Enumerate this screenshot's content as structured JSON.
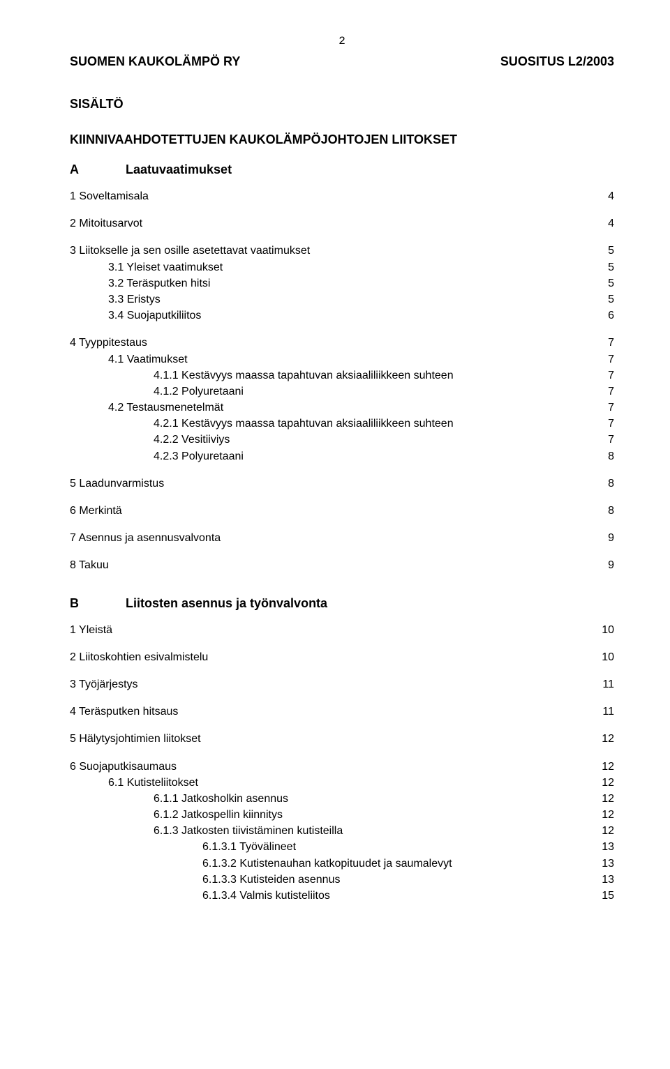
{
  "page_number": "2",
  "header": {
    "left": "SUOMEN KAUKOLÄMPÖ RY",
    "right": "SUOSITUS  L2/2003"
  },
  "sisalto_label": "SISÄLTÖ",
  "doc_title": "KIINNIVAAHDOTETTUJEN KAUKOLÄMPÖJOHTOJEN LIITOKSET",
  "section_A": {
    "letter": "A",
    "title": "Laatuvaatimukset"
  },
  "section_B": {
    "letter": "B",
    "title": "Liitosten asennus ja työnvalvonta"
  },
  "toc_A": [
    {
      "indent": 0,
      "label": "1 Soveltamisala",
      "page": "4",
      "gap_after": "md"
    },
    {
      "indent": 0,
      "label": "2 Mitoitusarvot",
      "page": "4",
      "gap_after": "md"
    },
    {
      "indent": 0,
      "label": "3 Liitokselle ja sen osille asetettavat vaatimukset",
      "page": "5"
    },
    {
      "indent": 1,
      "label": "3.1 Yleiset vaatimukset",
      "page": "5"
    },
    {
      "indent": 1,
      "label": "3.2 Teräsputken hitsi",
      "page": "5"
    },
    {
      "indent": 1,
      "label": "3.3 Eristys",
      "page": "5"
    },
    {
      "indent": 1,
      "label": "3.4 Suojaputkiliitos",
      "page": "6",
      "gap_after": "md"
    },
    {
      "indent": 0,
      "label": "4 Tyyppitestaus",
      "page": "7"
    },
    {
      "indent": 1,
      "label": "4.1 Vaatimukset",
      "page": "7"
    },
    {
      "indent": 2,
      "label": "4.1.1 Kestävyys maassa tapahtuvan aksiaaliliikkeen suhteen",
      "page": "7"
    },
    {
      "indent": 2,
      "label": "4.1.2 Polyuretaani",
      "page": "7"
    },
    {
      "indent": 1,
      "label": "4.2 Testausmenetelmät",
      "page": "7"
    },
    {
      "indent": 2,
      "label": "4.2.1 Kestävyys maassa tapahtuvan aksiaaliliikkeen suhteen",
      "page": "7"
    },
    {
      "indent": 2,
      "label": "4.2.2 Vesitiiviys",
      "page": "7"
    },
    {
      "indent": 2,
      "label": "4.2.3 Polyuretaani",
      "page": "8",
      "gap_after": "md"
    },
    {
      "indent": 0,
      "label": "5 Laadunvarmistus",
      "page": "8",
      "gap_after": "md"
    },
    {
      "indent": 0,
      "label": "6 Merkintä",
      "page": "8",
      "gap_after": "md"
    },
    {
      "indent": 0,
      "label": "7 Asennus ja asennusvalvonta",
      "page": "9",
      "gap_after": "md"
    },
    {
      "indent": 0,
      "label": "8 Takuu",
      "page": "9"
    }
  ],
  "toc_B": [
    {
      "indent": 0,
      "label": "1 Yleistä",
      "page": "10",
      "gap_after": "md"
    },
    {
      "indent": 0,
      "label": "2 Liitoskohtien esivalmistelu",
      "page": "10",
      "gap_after": "md"
    },
    {
      "indent": 0,
      "label": "3 Työjärjestys",
      "page": "11",
      "gap_after": "md"
    },
    {
      "indent": 0,
      "label": "4 Teräsputken hitsaus",
      "page": "11",
      "gap_after": "md"
    },
    {
      "indent": 0,
      "label": "5 Hälytysjohtimien liitokset",
      "page": "12",
      "gap_after": "md"
    },
    {
      "indent": 0,
      "label": "6 Suojaputkisaumaus",
      "page": "12"
    },
    {
      "indent": 1,
      "label": "6.1 Kutisteliitokset",
      "page": "12"
    },
    {
      "indent": 2,
      "label": "6.1.1 Jatkosholkin asennus",
      "page": "12"
    },
    {
      "indent": 2,
      "label": "6.1.2 Jatkospellin kiinnitys",
      "page": "12"
    },
    {
      "indent": 2,
      "label": "6.1.3 Jatkosten tiivistäminen kutisteilla",
      "page": "12"
    },
    {
      "indent": 3,
      "label": "6.1.3.1 Työvälineet",
      "page": "13"
    },
    {
      "indent": 3,
      "label": "6.1.3.2 Kutistenauhan katkopituudet ja saumalevyt",
      "page": "13"
    },
    {
      "indent": 3,
      "label": "6.1.3.3 Kutisteiden asennus",
      "page": "13"
    },
    {
      "indent": 3,
      "label": "6.1.3.4 Valmis kutisteliitos",
      "page": "15"
    }
  ]
}
